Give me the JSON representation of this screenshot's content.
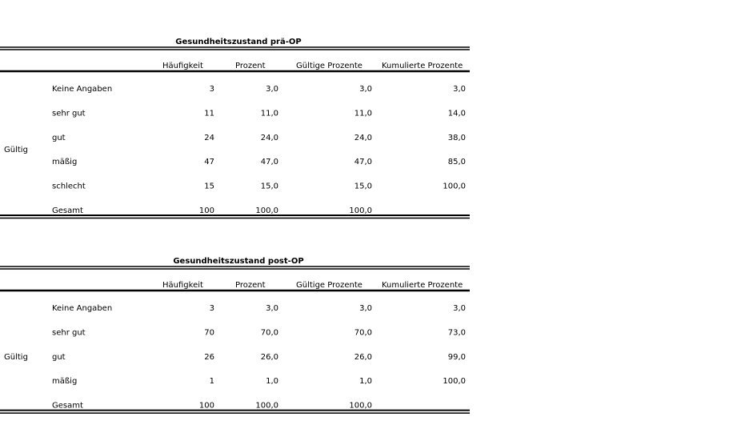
{
  "tables": [
    {
      "title": "Gesundheitszustand prä-OP",
      "headers": [
        "Häufigkeit",
        "Prozent",
        "Gültige Prozente",
        "Kumulierte Prozente"
      ],
      "group": "Gültig",
      "rows": [
        {
          "label": "Keine Angaben",
          "cells": [
            "3",
            "3,0",
            "3,0",
            "3,0"
          ]
        },
        {
          "label": "sehr gut",
          "cells": [
            "11",
            "11,0",
            "11,0",
            "14,0"
          ]
        },
        {
          "label": "gut",
          "cells": [
            "24",
            "24,0",
            "24,0",
            "38,0"
          ]
        },
        {
          "label": "mäßig",
          "cells": [
            "47",
            "47,0",
            "47,0",
            "85,0"
          ]
        },
        {
          "label": "schlecht",
          "cells": [
            "15",
            "15,0",
            "15,0",
            "100,0"
          ]
        },
        {
          "label": "Gesamt",
          "cells": [
            "100",
            "100,0",
            "100,0"
          ]
        }
      ]
    },
    {
      "title": "Gesundheitszustand post-OP",
      "headers": [
        "Häufigkeit",
        "Prozent",
        "Gültige Prozente",
        "Kumulierte Prozente"
      ],
      "group": "Gültig",
      "rows": [
        {
          "label": "Keine Angaben",
          "cells": [
            "3",
            "3,0",
            "3,0",
            "3,0"
          ]
        },
        {
          "label": "sehr gut",
          "cells": [
            "70",
            "70,0",
            "70,0",
            "73,0"
          ]
        },
        {
          "label": "gut",
          "cells": [
            "26",
            "26,0",
            "26,0",
            "99,0"
          ]
        },
        {
          "label": "mäßig",
          "cells": [
            "1",
            "1,0",
            "1,0",
            "100,0"
          ]
        },
        {
          "label": "Gesamt",
          "cells": [
            "100",
            "100,0",
            "100,0"
          ]
        }
      ]
    }
  ]
}
